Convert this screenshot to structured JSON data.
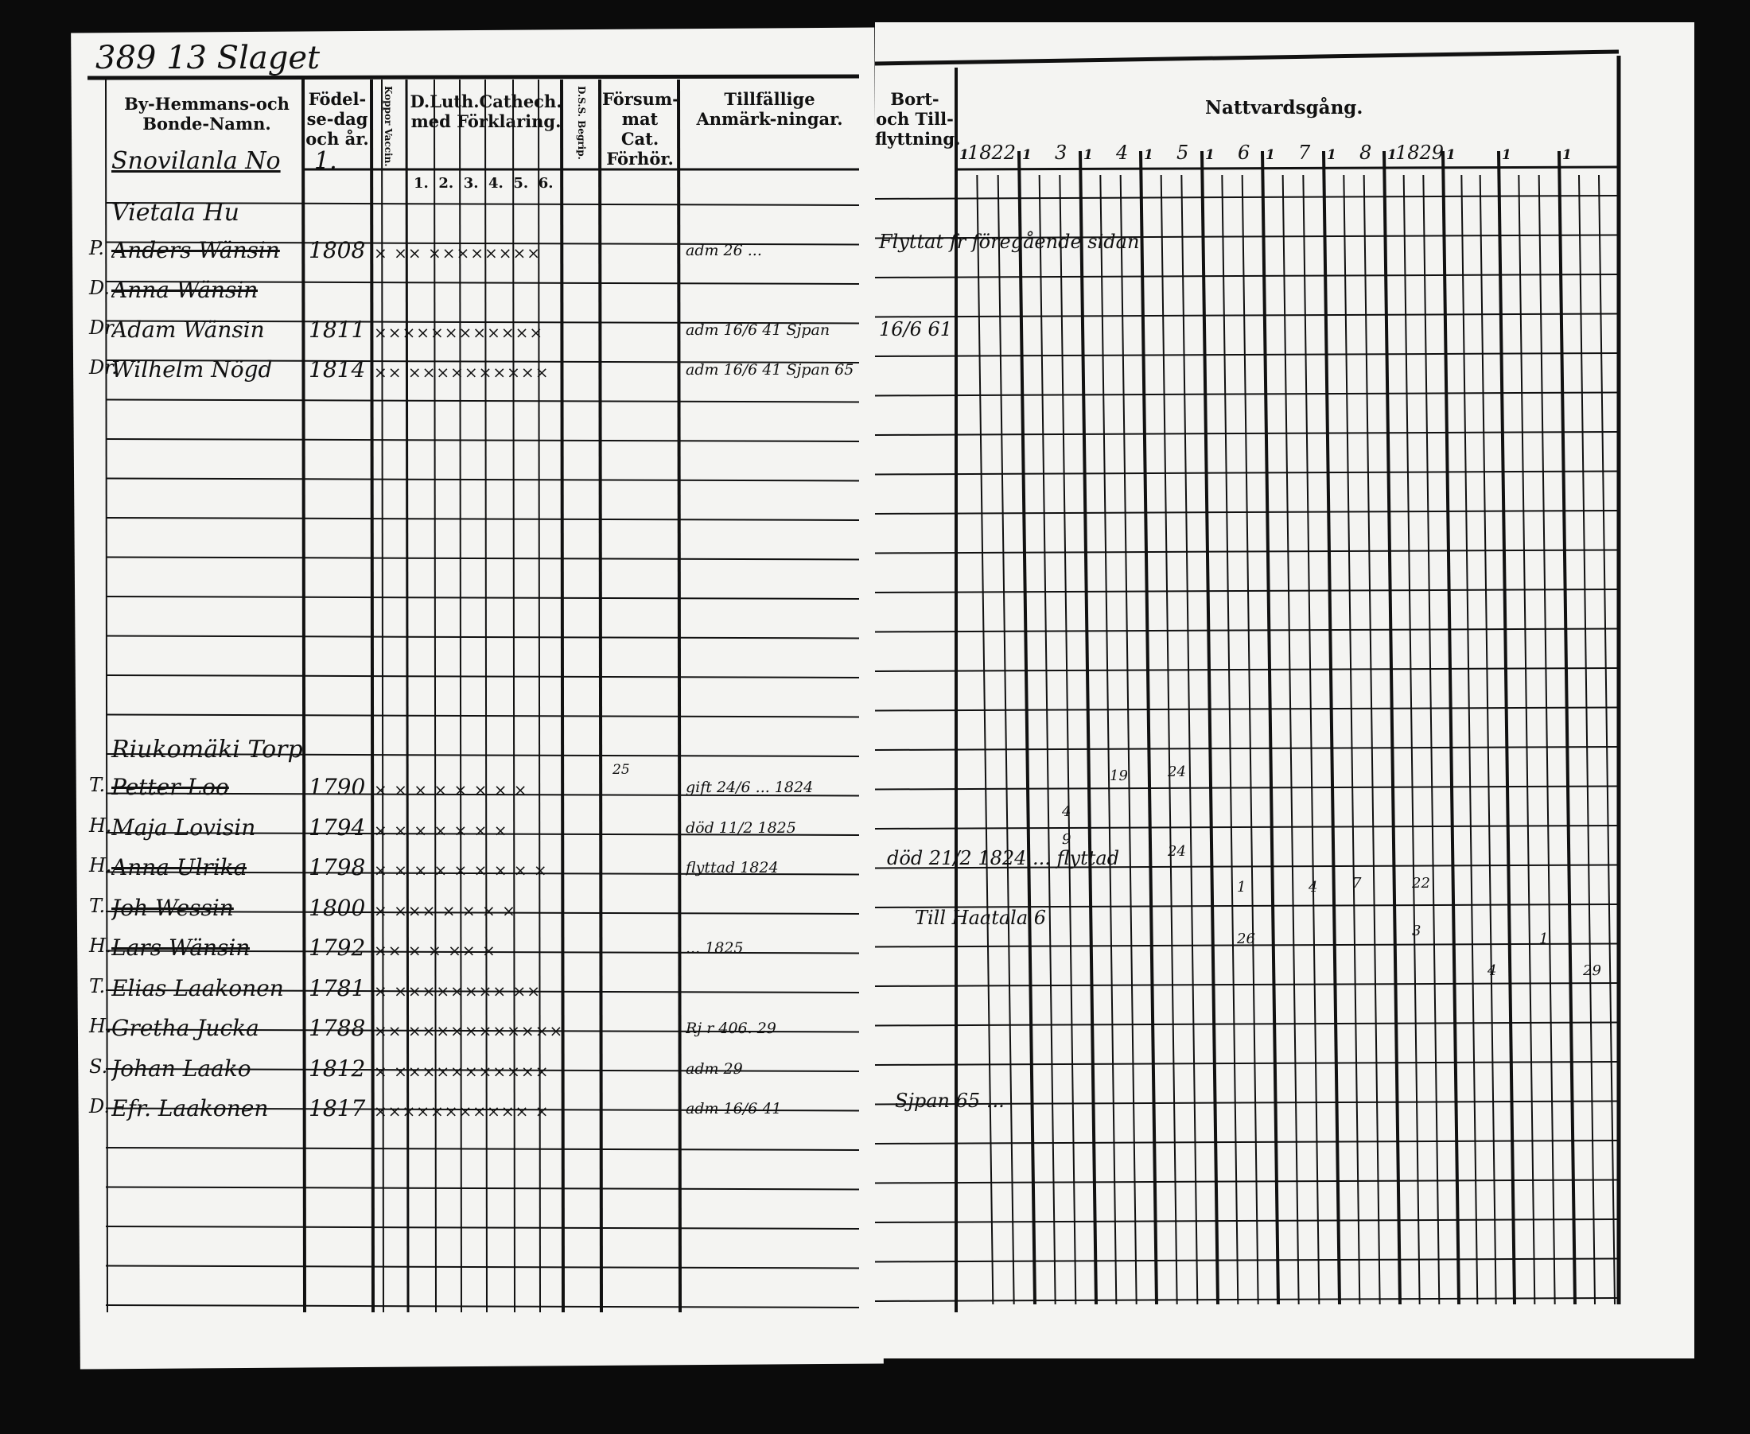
{
  "left_page": {
    "page_heading": "389 13 Slaget",
    "headers": {
      "name": "By-Hemmans-och Bonde-Namn.",
      "birth": "Födel-se-dag och år.",
      "vaccination": "Koppor Vaccin.",
      "catechism": "D.Luth.Cathech. med Förklaring.",
      "catechism_parts": [
        "1.",
        "2.",
        "3.",
        "4.",
        "5.",
        "6."
      ],
      "dss": "D.S.S. Begrip.",
      "forsummat": "Försum-mat Cat. Förhör.",
      "remarks": "Tillfällige Anmärk-ningar."
    },
    "village": "Snovilanla No",
    "village_no": "1.",
    "groups": [
      {
        "farm": "Vietala Hu",
        "entries": [
          {
            "mark": "P.",
            "name": "Anders Wänsin",
            "birth": "1808",
            "catech": "× ×× ××××××××",
            "remarks": "adm 26 ...",
            "struck": true
          },
          {
            "mark": "D.",
            "name": "Anna Wänsin",
            "birth": "",
            "catech": "",
            "remarks": "",
            "struck": true
          },
          {
            "mark": "Dr.",
            "name": "Adam Wänsin",
            "birth": "1811",
            "catech": "××××××××××××",
            "remarks": "adm 16/6 41 Sjpan"
          },
          {
            "mark": "Dr.",
            "name": "Wilhelm Nögd",
            "birth": "1814",
            "catech": "×× ××××××××××",
            "remarks": "adm 16/6 41 Sjpan 65"
          }
        ]
      },
      {
        "farm": "Riukomäki Torp",
        "entries": [
          {
            "mark": "T.",
            "name": "Petter Loo",
            "birth": "1790",
            "catech": "× × × × × × × ×",
            "forsummat": "25",
            "remarks": "gift 24/6 ... 1824",
            "struck": true
          },
          {
            "mark": "H.",
            "name": "Maja Lovisin",
            "birth": "1794",
            "catech": "× × × × × × ×",
            "remarks": "död 11/2 1825"
          },
          {
            "mark": "H.",
            "name": "Anna Ulrika",
            "birth": "1798",
            "catech": "× × × × × × × × ×",
            "remarks": "flyttad 1824",
            "struck": true
          },
          {
            "mark": "T.",
            "name": "Joh Wessin",
            "birth": "1800",
            "catech": "× ××× × × × ×",
            "remarks": "",
            "struck": true
          },
          {
            "mark": "H.",
            "name": "Lars Wänsin",
            "birth": "1792",
            "catech": "××  × × ×× ×",
            "remarks": "... 1825",
            "struck": true
          },
          {
            "mark": "T.",
            "name": "Elias Laakonen",
            "birth": "1781",
            "catech": "× ×××××××× ××"
          },
          {
            "mark": "H.",
            "name": "Gretha Jucka",
            "birth": "1788",
            "catech": "×× ×××××××××××",
            "remarks": "Rj r 406. 29"
          },
          {
            "mark": "S.",
            "name": "Johan Laako",
            "birth": "1812",
            "catech": "× ×××××××××××",
            "remarks": "adm 29"
          },
          {
            "mark": "D.",
            "name": "Efr. Laakonen",
            "birth": "1817",
            "catech": "××××××××××× ×",
            "remarks": "adm 16/6 41"
          }
        ]
      }
    ]
  },
  "right_page": {
    "headers": {
      "moving": "Bort-och Till-flyttning.",
      "communion": "Nattvardsgång."
    },
    "years": [
      "1822",
      "3",
      "4",
      "5",
      "6",
      "7",
      "8",
      "1829",
      "",
      "",
      ""
    ],
    "year_prefix": "1",
    "remarks": [
      {
        "text": "Flyttat fr föregående sidan"
      },
      {
        "text": "16/6 61"
      },
      {
        "text": "död 21/2 1824 ... flyttad"
      },
      {
        "text": "Till Haatala 6"
      },
      {
        "text": "Sjpan 65 ..."
      }
    ],
    "marks": [
      "24",
      "19",
      "4",
      "9",
      "24",
      "1",
      "26",
      "4",
      "7",
      "22",
      "3",
      "1",
      "4",
      "29"
    ]
  }
}
